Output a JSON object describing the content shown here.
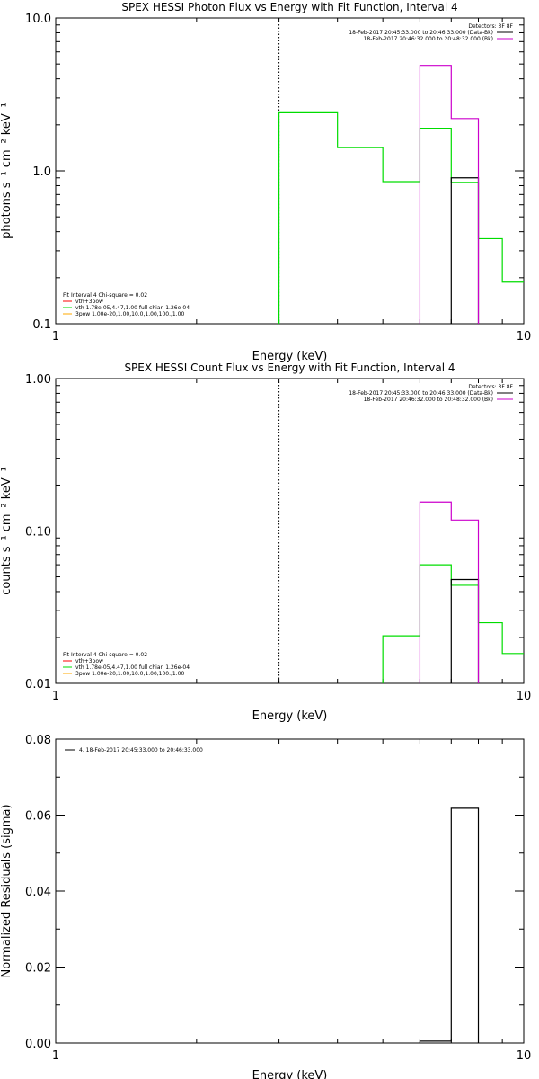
{
  "chart_data": [
    {
      "type": "line",
      "title": "SPEX HESSI Photon Flux vs Energy with Fit Function, Interval 4",
      "xlabel": "Energy (keV)",
      "ylabel": "photons s⁻¹ cm⁻² keV⁻¹",
      "xscale": "log",
      "yscale": "log",
      "xlim": [
        1,
        10
      ],
      "ylim": [
        0.1,
        10
      ],
      "xticks": [
        {
          "v": 1,
          "label": "1"
        },
        {
          "v": 10,
          "label": "10"
        }
      ],
      "yticks": [
        {
          "v": 0.1,
          "label": "0.1"
        },
        {
          "v": 1,
          "label": "1.0"
        },
        {
          "v": 10,
          "label": "10.0"
        }
      ],
      "vline": 3.0,
      "legend_topright": {
        "detectors": "Detectors: 3F 8F",
        "lines": [
          {
            "text": "18-Feb-2017 20:45:33.000 to 20:46:33.000 (Data-Bk)",
            "color": "#000000"
          },
          {
            "text": "18-Feb-2017 20:46:32.000 to 20:48:32.000 (Bk)",
            "color": "#cc00cc"
          }
        ]
      },
      "legend_bottomleft": {
        "header": "Fit Interval 4   Chi-square = 0.02",
        "lines": [
          {
            "text": "vth+3pow",
            "color": "#ff0000"
          },
          {
            "text": "vth 1.78e-05,4.47,1.00  full chian 1.26e-04",
            "color": "#00dd00"
          },
          {
            "text": "3pow 1.00e-20,1.00,10.0,1.00,100.,1.00",
            "color": "#ffaa00"
          }
        ]
      },
      "series": [
        {
          "color": "#00dd00",
          "bins": [
            {
              "lo": 3.0,
              "hi": 4.0,
              "v": 2.4
            },
            {
              "lo": 4.0,
              "hi": 5.0,
              "v": 1.42
            },
            {
              "lo": 5.0,
              "hi": 6.0,
              "v": 0.85
            },
            {
              "lo": 6.0,
              "hi": 7.0,
              "v": 1.9
            },
            {
              "lo": 7.0,
              "hi": 8.0,
              "v": 0.84
            },
            {
              "lo": 8.0,
              "hi": 9.0,
              "v": 0.36
            },
            {
              "lo": 9.0,
              "hi": 10.0,
              "v": 0.187
            }
          ]
        },
        {
          "color": "#000000",
          "bins": [
            {
              "lo": 7.0,
              "hi": 8.0,
              "v": 0.9
            }
          ]
        },
        {
          "color": "#cc00cc",
          "bins": [
            {
              "lo": 6.0,
              "hi": 7.0,
              "v": 4.9
            },
            {
              "lo": 7.0,
              "hi": 8.0,
              "v": 2.2
            }
          ]
        }
      ]
    },
    {
      "type": "line",
      "title": "SPEX HESSI Count Flux vs Energy with Fit Function, Interval 4",
      "xlabel": "Energy (keV)",
      "ylabel": "counts s⁻¹ cm⁻² keV⁻¹",
      "xscale": "log",
      "yscale": "log",
      "xlim": [
        1,
        10
      ],
      "ylim": [
        0.01,
        1
      ],
      "xticks": [
        {
          "v": 1,
          "label": "1"
        },
        {
          "v": 10,
          "label": "10"
        }
      ],
      "yticks": [
        {
          "v": 0.01,
          "label": "0.01"
        },
        {
          "v": 0.1,
          "label": "0.10"
        },
        {
          "v": 1,
          "label": "1.00"
        }
      ],
      "vline": 3.0,
      "legend_topright": {
        "detectors": "Detectors: 3F 8F",
        "lines": [
          {
            "text": "18-Feb-2017 20:45:33.000 to 20:46:33.000 (Data-Bk)",
            "color": "#000000"
          },
          {
            "text": "18-Feb-2017 20:46:32.000 to 20:48:32.000 (Bk)",
            "color": "#cc00cc"
          }
        ]
      },
      "legend_bottomleft": {
        "header": "Fit Interval 4   Chi-square = 0.02",
        "lines": [
          {
            "text": "vth+3pow",
            "color": "#ff0000"
          },
          {
            "text": "vth 1.78e-05,4.47,1.00  full chian 1.26e-04",
            "color": "#00dd00"
          },
          {
            "text": "3pow 1.00e-20,1.00,10.0,1.00,100.,1.00",
            "color": "#ffaa00"
          }
        ]
      },
      "series": [
        {
          "color": "#00dd00",
          "bins": [
            {
              "lo": 5.0,
              "hi": 6.0,
              "v": 0.0205
            },
            {
              "lo": 6.0,
              "hi": 7.0,
              "v": 0.06
            },
            {
              "lo": 7.0,
              "hi": 8.0,
              "v": 0.044
            },
            {
              "lo": 8.0,
              "hi": 9.0,
              "v": 0.025
            },
            {
              "lo": 9.0,
              "hi": 10.0,
              "v": 0.0157
            }
          ]
        },
        {
          "color": "#000000",
          "bins": [
            {
              "lo": 7.0,
              "hi": 8.0,
              "v": 0.048
            }
          ]
        },
        {
          "color": "#cc00cc",
          "bins": [
            {
              "lo": 6.0,
              "hi": 7.0,
              "v": 0.155
            },
            {
              "lo": 7.0,
              "hi": 8.0,
              "v": 0.118
            }
          ]
        }
      ]
    },
    {
      "type": "line",
      "title": "",
      "xlabel": "Energy (keV)",
      "ylabel": "Normalized Residuals (sigma)",
      "xscale": "log",
      "yscale": "linear",
      "xlim": [
        1,
        10
      ],
      "ylim": [
        0,
        0.08
      ],
      "xticks": [
        {
          "v": 1,
          "label": "1"
        },
        {
          "v": 10,
          "label": "10"
        }
      ],
      "yticks": [
        {
          "v": 0,
          "label": "0.00"
        },
        {
          "v": 0.02,
          "label": "0.02"
        },
        {
          "v": 0.04,
          "label": "0.04"
        },
        {
          "v": 0.06,
          "label": "0.06"
        },
        {
          "v": 0.08,
          "label": "0.08"
        }
      ],
      "legend_topleft": {
        "lines": [
          {
            "text": "4. 18-Feb-2017 20:45:33.000 to 20:46:33.000",
            "color": "#000000"
          }
        ]
      },
      "series": [
        {
          "color": "#000000",
          "bins": [
            {
              "lo": 6.0,
              "hi": 7.0,
              "v": 0.0005
            },
            {
              "lo": 7.0,
              "hi": 8.0,
              "v": 0.0618
            }
          ]
        }
      ]
    }
  ]
}
